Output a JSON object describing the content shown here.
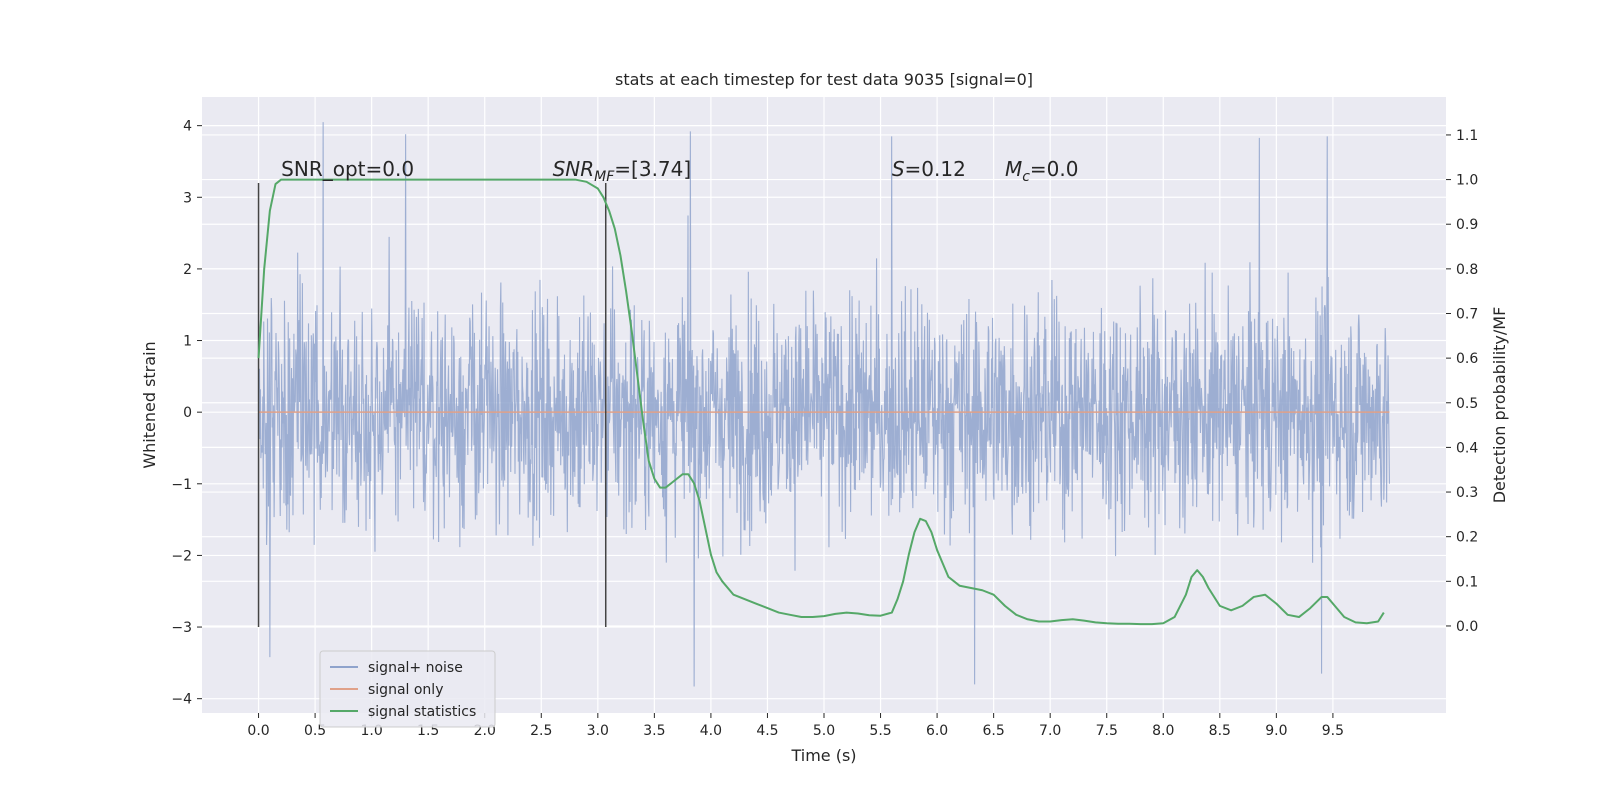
{
  "chart_data": {
    "type": "line",
    "title": "stats at each timestep for test data 9035 [signal=0]",
    "xlabel": "Time (s)",
    "ylabel_left": "Whitened strain",
    "ylabel_right": "Detection probability/MF",
    "xlim": [
      -0.5,
      10.5
    ],
    "ylim_left": [
      -4.2,
      4.4
    ],
    "ylim_right": [
      -0.195,
      1.185
    ],
    "x_ticks": [
      0.0,
      0.5,
      1.0,
      1.5,
      2.0,
      2.5,
      3.0,
      3.5,
      4.0,
      4.5,
      5.0,
      5.5,
      6.0,
      6.5,
      7.0,
      7.5,
      8.0,
      8.5,
      9.0,
      9.5
    ],
    "x_tick_labels": [
      "0.0",
      "0.5",
      "1.0",
      "1.5",
      "2.0",
      "2.5",
      "3.0",
      "3.5",
      "4.0",
      "4.5",
      "5.0",
      "5.5",
      "6.0",
      "6.5",
      "7.0",
      "7.5",
      "8.0",
      "8.5",
      "9.0",
      "9.5"
    ],
    "y_ticks_left": [
      -4,
      -3,
      -2,
      -1,
      0,
      1,
      2,
      3,
      4
    ],
    "y_tick_labels_left": [
      "−4",
      "−3",
      "−2",
      "−1",
      "0",
      "1",
      "2",
      "3",
      "4"
    ],
    "y_ticks_right": [
      0.0,
      0.1,
      0.2,
      0.3,
      0.4,
      0.5,
      0.6,
      0.7,
      0.8,
      0.9,
      1.0,
      1.1
    ],
    "y_tick_labels_right": [
      "0.0",
      "0.1",
      "0.2",
      "0.3",
      "0.4",
      "0.5",
      "0.6",
      "0.7",
      "0.8",
      "0.9",
      "1.0",
      "1.1"
    ],
    "grid": true,
    "legend_position": "lower-left",
    "legend": [
      {
        "label": "signal+ noise",
        "color": "#8fa3cc"
      },
      {
        "label": "signal only",
        "color": "#e0a189"
      },
      {
        "label": "signal statistics",
        "color": "#55a868"
      }
    ],
    "annotations": [
      {
        "text": "SNR_opt=0.0",
        "x": 0.2,
        "y": 3.3
      },
      {
        "text": "SNR_MF=[3.74]",
        "x": 2.6,
        "y": 3.3
      },
      {
        "text": "S=0.12",
        "x": 5.6,
        "y": 3.3
      },
      {
        "text": "M_c=0.0",
        "x": 6.6,
        "y": 3.3
      }
    ],
    "vlines": [
      {
        "x": 0.0,
        "y_range": [
          -3.0,
          3.2
        ]
      },
      {
        "x": 3.07,
        "y_range": [
          -3.0,
          3.2
        ]
      }
    ],
    "series": [
      {
        "name": "signal+ noise",
        "axis": "left",
        "x_range": [
          0.0,
          10.0
        ],
        "approx_envelope": {
          "typical_abs": 1.4,
          "peak_max": 4.05,
          "peak_min": -3.83
        },
        "notable_peaks": [
          {
            "x": 0.57,
            "y": 4.05
          },
          {
            "x": 1.3,
            "y": 3.88
          },
          {
            "x": 3.82,
            "y": 3.92
          },
          {
            "x": 5.6,
            "y": 3.85
          },
          {
            "x": 8.85,
            "y": 3.83
          },
          {
            "x": 9.45,
            "y": 3.85
          },
          {
            "x": 3.85,
            "y": -3.83
          },
          {
            "x": 6.33,
            "y": -3.8
          },
          {
            "x": 9.4,
            "y": -3.65
          },
          {
            "x": 0.1,
            "y": -3.42
          }
        ]
      },
      {
        "name": "signal only",
        "axis": "left",
        "x": [
          0.0,
          10.0
        ],
        "y": [
          0.0,
          0.0
        ]
      },
      {
        "name": "signal statistics",
        "axis": "right",
        "x": [
          0.0,
          0.05,
          0.1,
          0.15,
          0.2,
          0.3,
          0.5,
          1.0,
          1.5,
          2.0,
          2.5,
          2.8,
          2.9,
          3.0,
          3.05,
          3.1,
          3.15,
          3.2,
          3.25,
          3.3,
          3.35,
          3.4,
          3.45,
          3.5,
          3.55,
          3.6,
          3.65,
          3.7,
          3.75,
          3.8,
          3.85,
          3.9,
          3.95,
          4.0,
          4.05,
          4.1,
          4.2,
          4.3,
          4.4,
          4.5,
          4.6,
          4.7,
          4.8,
          4.9,
          5.0,
          5.1,
          5.2,
          5.3,
          5.4,
          5.5,
          5.6,
          5.65,
          5.7,
          5.75,
          5.8,
          5.85,
          5.9,
          5.95,
          6.0,
          6.05,
          6.1,
          6.2,
          6.3,
          6.4,
          6.5,
          6.6,
          6.7,
          6.8,
          6.9,
          7.0,
          7.1,
          7.2,
          7.3,
          7.4,
          7.5,
          7.6,
          7.7,
          7.8,
          7.9,
          8.0,
          8.1,
          8.2,
          8.25,
          8.3,
          8.35,
          8.4,
          8.5,
          8.6,
          8.7,
          8.8,
          8.9,
          9.0,
          9.1,
          9.2,
          9.3,
          9.4,
          9.45,
          9.5,
          9.6,
          9.7,
          9.8,
          9.9,
          9.95
        ],
        "y": [
          0.6,
          0.8,
          0.93,
          0.99,
          1.0,
          1.0,
          1.0,
          1.0,
          1.0,
          1.0,
          1.0,
          1.0,
          0.995,
          0.98,
          0.96,
          0.93,
          0.89,
          0.83,
          0.75,
          0.66,
          0.56,
          0.46,
          0.37,
          0.33,
          0.31,
          0.31,
          0.32,
          0.33,
          0.34,
          0.34,
          0.32,
          0.28,
          0.22,
          0.16,
          0.12,
          0.1,
          0.07,
          0.06,
          0.05,
          0.04,
          0.03,
          0.025,
          0.02,
          0.02,
          0.022,
          0.027,
          0.03,
          0.028,
          0.024,
          0.023,
          0.03,
          0.06,
          0.1,
          0.16,
          0.21,
          0.24,
          0.235,
          0.21,
          0.17,
          0.14,
          0.11,
          0.09,
          0.085,
          0.08,
          0.07,
          0.045,
          0.025,
          0.015,
          0.01,
          0.01,
          0.013,
          0.015,
          0.012,
          0.008,
          0.006,
          0.005,
          0.005,
          0.004,
          0.004,
          0.006,
          0.02,
          0.07,
          0.11,
          0.125,
          0.11,
          0.085,
          0.045,
          0.035,
          0.045,
          0.065,
          0.07,
          0.05,
          0.025,
          0.02,
          0.04,
          0.065,
          0.065,
          0.05,
          0.02,
          0.008,
          0.006,
          0.01,
          0.03
        ]
      }
    ]
  }
}
